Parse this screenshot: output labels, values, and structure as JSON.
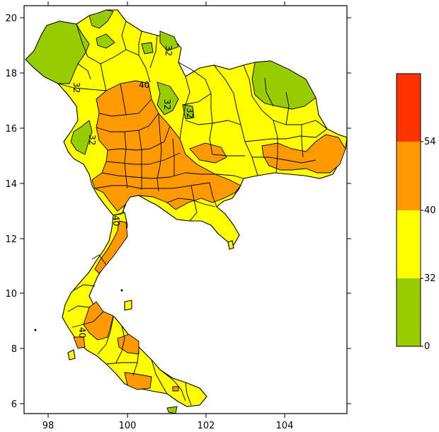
{
  "map": {
    "x_ticks": [
      "98",
      "100",
      "102",
      "104"
    ],
    "y_ticks": [
      "20",
      "18",
      "16",
      "14",
      "12",
      "10",
      "8",
      "6"
    ],
    "contour_labels": [
      "32",
      "32",
      "32",
      "32",
      "32",
      "40",
      "40",
      "40"
    ],
    "colors": {
      "band_0_32": "#99cc00",
      "band_32_40": "#ffff00",
      "band_40_54": "#ff9900",
      "band_54_plus": "#ff3300"
    }
  },
  "legend": {
    "labels": [
      "54",
      "40",
      "32",
      "0"
    ],
    "colors": [
      "#ff3300",
      "#ff9900",
      "#ffff00",
      "#99cc00"
    ]
  }
}
